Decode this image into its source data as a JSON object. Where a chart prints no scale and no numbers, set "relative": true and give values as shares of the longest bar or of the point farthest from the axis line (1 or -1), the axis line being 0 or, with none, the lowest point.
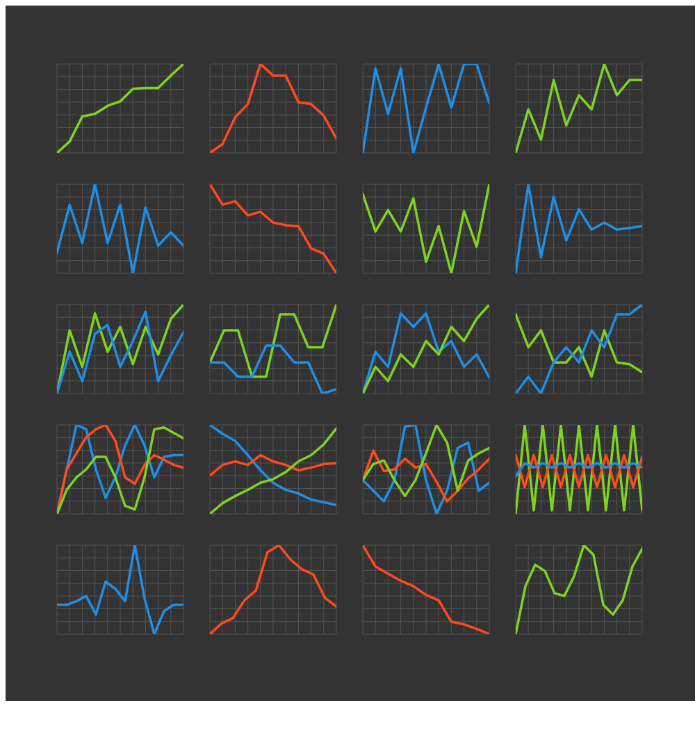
{
  "chart_data": [
    {
      "type": "line",
      "relative": true,
      "grid": true,
      "categories": [
        null,
        null,
        null,
        null,
        null,
        null,
        null,
        null,
        null,
        null,
        null
      ],
      "series": [
        {
          "color": "#7ed321",
          "values": [
            0,
            0.13,
            0.41,
            0.44,
            0.53,
            0.58,
            0.72,
            0.73,
            0.73,
            0.87,
            1
          ]
        }
      ]
    },
    {
      "type": "line",
      "relative": true,
      "grid": true,
      "categories": [
        null,
        null,
        null,
        null,
        null,
        null,
        null,
        null,
        null,
        null,
        null
      ],
      "series": [
        {
          "color": "#ff4a1c",
          "values": [
            0,
            0.1,
            0.4,
            0.55,
            1,
            0.87,
            0.87,
            0.57,
            0.55,
            0.42,
            0.16
          ]
        }
      ]
    },
    {
      "type": "line",
      "relative": true,
      "grid": true,
      "categories": [
        null,
        null,
        null,
        null,
        null,
        null,
        null,
        null,
        null,
        null,
        null
      ],
      "series": [
        {
          "color": "#1e8fe6",
          "values": [
            0,
            0.95,
            0.44,
            0.95,
            0,
            0.51,
            1,
            0.51,
            1,
            1,
            0.56
          ]
        }
      ]
    },
    {
      "type": "line",
      "relative": true,
      "grid": true,
      "categories": [
        null,
        null,
        null,
        null,
        null,
        null,
        null,
        null,
        null,
        null,
        null
      ],
      "series": [
        {
          "color": "#7ed321",
          "values": [
            0,
            0.49,
            0.15,
            0.82,
            0.31,
            0.65,
            0.49,
            1,
            0.65,
            0.82,
            0.82
          ]
        }
      ]
    },
    {
      "type": "line",
      "relative": true,
      "grid": true,
      "categories": [
        null,
        null,
        null,
        null,
        null,
        null,
        null,
        null,
        null,
        null,
        null
      ],
      "series": [
        {
          "color": "#1e8fe6",
          "values": [
            0.23,
            0.77,
            0.34,
            1,
            0.34,
            0.77,
            0,
            0.74,
            0.31,
            0.46,
            0.31
          ]
        }
      ]
    },
    {
      "type": "line",
      "relative": true,
      "grid": true,
      "categories": [
        null,
        null,
        null,
        null,
        null,
        null,
        null,
        null,
        null,
        null,
        null
      ],
      "series": [
        {
          "color": "#ff4a1c",
          "values": [
            1,
            0.77,
            0.81,
            0.65,
            0.69,
            0.57,
            0.54,
            0.53,
            0.28,
            0.22,
            0
          ]
        }
      ]
    },
    {
      "type": "line",
      "relative": true,
      "grid": true,
      "categories": [
        null,
        null,
        null,
        null,
        null,
        null,
        null,
        null,
        null,
        null,
        null
      ],
      "series": [
        {
          "color": "#7ed321",
          "values": [
            0.89,
            0.47,
            0.71,
            0.47,
            0.84,
            0.13,
            0.53,
            0,
            0.7,
            0.3,
            1
          ]
        }
      ]
    },
    {
      "type": "line",
      "relative": true,
      "grid": true,
      "categories": [
        null,
        null,
        null,
        null,
        null,
        null,
        null,
        null,
        null,
        null,
        null
      ],
      "series": [
        {
          "color": "#1e8fe6",
          "values": [
            0,
            1,
            0.18,
            0.86,
            0.37,
            0.72,
            0.49,
            0.57,
            0.49,
            0.51,
            0.53
          ]
        }
      ]
    },
    {
      "type": "line",
      "relative": true,
      "grid": true,
      "categories": [
        null,
        null,
        null,
        null,
        null,
        null,
        null,
        null,
        null,
        null,
        null
      ],
      "series": [
        {
          "color": "#7ed321",
          "values": [
            0,
            0.71,
            0.3,
            0.9,
            0.47,
            0.75,
            0.33,
            0.75,
            0.44,
            0.84,
            1
          ]
        },
        {
          "color": "#1e8fe6",
          "values": [
            0,
            0.47,
            0.14,
            0.67,
            0.77,
            0.3,
            0.59,
            0.92,
            0.14,
            0.43,
            0.69
          ]
        }
      ]
    },
    {
      "type": "line",
      "relative": true,
      "grid": true,
      "categories": [
        null,
        null,
        null,
        null,
        null,
        null,
        null,
        null,
        null,
        null
      ],
      "series": [
        {
          "color": "#7ed321",
          "values": [
            0.35,
            0.71,
            0.71,
            0.19,
            0.19,
            0.89,
            0.89,
            0.52,
            0.52,
            1
          ]
        },
        {
          "color": "#1e8fe6",
          "values": [
            0.35,
            0.35,
            0.19,
            0.19,
            0.54,
            0.54,
            0.35,
            0.35,
            0,
            0.05
          ]
        }
      ]
    },
    {
      "type": "line",
      "relative": true,
      "grid": true,
      "categories": [
        null,
        null,
        null,
        null,
        null,
        null,
        null,
        null,
        null,
        null,
        null
      ],
      "series": [
        {
          "color": "#1e8fe6",
          "values": [
            0,
            0.47,
            0.3,
            0.9,
            0.75,
            0.9,
            0.47,
            0.59,
            0.3,
            0.44,
            0.18
          ]
        },
        {
          "color": "#7ed321",
          "values": [
            0,
            0.3,
            0.14,
            0.44,
            0.3,
            0.59,
            0.44,
            0.75,
            0.59,
            0.84,
            1
          ]
        }
      ]
    },
    {
      "type": "line",
      "relative": true,
      "grid": true,
      "categories": [
        null,
        null,
        null,
        null,
        null,
        null,
        null,
        null,
        null,
        null,
        null
      ],
      "series": [
        {
          "color": "#7ed321",
          "values": [
            0.89,
            0.52,
            0.71,
            0.35,
            0.35,
            0.52,
            0.19,
            0.71,
            0.35,
            0.33,
            0.24
          ]
        },
        {
          "color": "#1e8fe6",
          "values": [
            0,
            0.19,
            0,
            0.35,
            0.52,
            0.35,
            0.71,
            0.52,
            0.89,
            0.89,
            1
          ]
        }
      ]
    },
    {
      "type": "line",
      "relative": true,
      "grid": true,
      "categories": [
        null,
        null,
        null,
        null,
        null,
        null,
        null,
        null,
        null,
        null,
        null,
        null,
        null,
        null
      ],
      "series": [
        {
          "color": "#1e8fe6",
          "values": [
            0,
            0.5,
            1,
            0.95,
            0.5,
            0.18,
            0.41,
            0.77,
            1,
            0.77,
            0.41,
            0.64,
            0.66,
            0.66
          ]
        },
        {
          "color": "#ff4a1c",
          "values": [
            0,
            0.5,
            0.68,
            0.86,
            0.95,
            1,
            0.82,
            0.41,
            0.34,
            0.55,
            0.66,
            0.61,
            0.55,
            0.52
          ]
        },
        {
          "color": "#7ed321",
          "values": [
            0,
            0.27,
            0.41,
            0.5,
            0.64,
            0.64,
            0.41,
            0.09,
            0.05,
            0.41,
            0.95,
            0.97,
            0.91,
            0.85
          ]
        }
      ]
    },
    {
      "type": "line",
      "relative": true,
      "grid": true,
      "categories": [
        null,
        null,
        null,
        null,
        null,
        null,
        null,
        null,
        null,
        null,
        null
      ],
      "series": [
        {
          "color": "#1e8fe6",
          "values": [
            1,
            0.9,
            0.82,
            0.66,
            0.49,
            0.35,
            0.27,
            0.23,
            0.16,
            0.13,
            0.1
          ]
        },
        {
          "color": "#ff4a1c",
          "values": [
            0.43,
            0.55,
            0.59,
            0.55,
            0.66,
            0.59,
            0.55,
            0.49,
            0.52,
            0.56,
            0.57
          ]
        },
        {
          "color": "#7ed321",
          "values": [
            0,
            0.12,
            0.2,
            0.27,
            0.35,
            0.39,
            0.47,
            0.59,
            0.66,
            0.78,
            0.96
          ]
        }
      ]
    },
    {
      "type": "line",
      "relative": true,
      "grid": true,
      "categories": [
        null,
        null,
        null,
        null,
        null,
        null,
        null,
        null,
        null,
        null,
        null,
        null,
        null
      ],
      "series": [
        {
          "color": "#1e8fe6",
          "values": [
            0.38,
            0.26,
            0.14,
            0.38,
            0.98,
            1,
            0.38,
            0,
            0.26,
            0.74,
            0.8,
            0.26,
            0.35
          ]
        },
        {
          "color": "#ff4a1c",
          "values": [
            0.38,
            0.71,
            0.48,
            0.5,
            0.62,
            0.52,
            0.56,
            0.36,
            0.14,
            0.26,
            0.4,
            0.5,
            0.62
          ]
        },
        {
          "color": "#7ed321",
          "values": [
            0.38,
            0.56,
            0.6,
            0.38,
            0.2,
            0.38,
            0.68,
            1,
            0.8,
            0.26,
            0.6,
            0.68,
            0.74
          ]
        }
      ]
    },
    {
      "type": "line",
      "relative": true,
      "grid": true,
      "categories": [
        null,
        null,
        null,
        null,
        null,
        null,
        null,
        null,
        null,
        null,
        null,
        null,
        null,
        null,
        null
      ],
      "series": [
        {
          "color": "#7ed321",
          "values": [
            0,
            1,
            0.04,
            1,
            0.04,
            1,
            0.04,
            1,
            0.04,
            1,
            0.04,
            1,
            0.04,
            1,
            0.04
          ]
        },
        {
          "color": "#ff4a1c",
          "values": [
            0.66,
            0.3,
            0.66,
            0.3,
            0.66,
            0.3,
            0.66,
            0.3,
            0.66,
            0.3,
            0.66,
            0.3,
            0.66,
            0.3,
            0.64
          ]
        },
        {
          "color": "#1e8fe6",
          "values": [
            0.42,
            0.57,
            0.52,
            0.57,
            0.52,
            0.57,
            0.52,
            0.57,
            0.52,
            0.57,
            0.52,
            0.57,
            0.52,
            0.57,
            0.52
          ]
        }
      ]
    },
    {
      "type": "line",
      "relative": true,
      "grid": true,
      "categories": [
        null,
        null,
        null,
        null,
        null,
        null,
        null,
        null,
        null,
        null,
        null,
        null,
        null,
        null
      ],
      "series": [
        {
          "color": "#1e8fe6",
          "values": [
            0.33,
            0.33,
            0.37,
            0.43,
            0.22,
            0.59,
            0.51,
            0.37,
            1,
            0.4,
            0,
            0.26,
            0.33,
            0.33
          ]
        }
      ]
    },
    {
      "type": "line",
      "relative": true,
      "grid": true,
      "categories": [
        null,
        null,
        null,
        null,
        null,
        null,
        null,
        null,
        null,
        null,
        null,
        null
      ],
      "series": [
        {
          "color": "#ff4a1c",
          "values": [
            0,
            0.12,
            0.18,
            0.38,
            0.49,
            0.92,
            1,
            0.84,
            0.73,
            0.67,
            0.41,
            0.31
          ]
        }
      ]
    },
    {
      "type": "line",
      "relative": true,
      "grid": true,
      "categories": [
        null,
        null,
        null,
        null,
        null,
        null,
        null,
        null,
        null,
        null,
        null
      ],
      "series": [
        {
          "color": "#ff4a1c",
          "values": [
            1,
            0.76,
            0.68,
            0.6,
            0.54,
            0.44,
            0.38,
            0.14,
            0.11,
            0.06,
            0
          ]
        }
      ]
    },
    {
      "type": "line",
      "relative": true,
      "grid": true,
      "categories": [
        null,
        null,
        null,
        null,
        null,
        null,
        null,
        null,
        null,
        null,
        null,
        null,
        null,
        null
      ],
      "series": [
        {
          "color": "#7ed321",
          "values": [
            0,
            0.54,
            0.78,
            0.71,
            0.46,
            0.43,
            0.65,
            1,
            0.89,
            0.33,
            0.22,
            0.38,
            0.76,
            0.96
          ]
        }
      ]
    }
  ]
}
